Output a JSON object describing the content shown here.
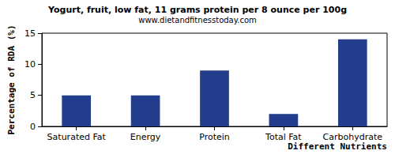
{
  "chart_data": {
    "type": "bar",
    "title": "Yogurt, fruit, low fat, 11 grams protein per 8 ounce per 100g",
    "subtitle": "www.dietandfitnesstoday.com",
    "x_label": "Different Nutrients",
    "y_label": "Percentage of RDA (%)",
    "categories": [
      "Saturated Fat",
      "Energy",
      "Protein",
      "Total Fat",
      "Carbohydrate"
    ],
    "values": [
      5,
      5,
      9,
      2,
      14
    ],
    "color": "#233e8c",
    "ylim": [
      0,
      15
    ],
    "yticks": [
      0,
      5,
      10,
      15
    ],
    "grid": false
  }
}
